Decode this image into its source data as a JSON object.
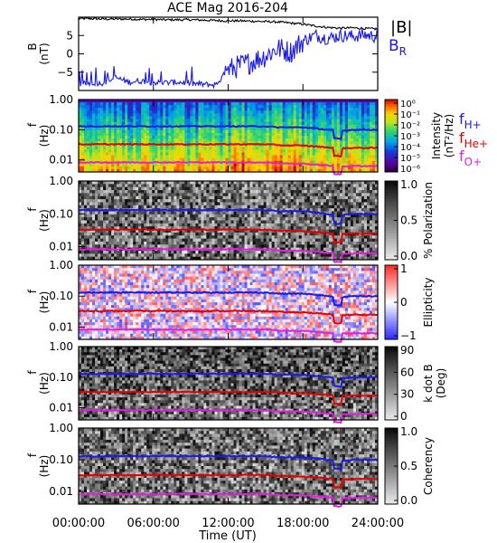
{
  "title": "ACE Mag 2016-204",
  "x_axis": {
    "label": "Time (UT)",
    "range_hours": [
      0,
      24
    ],
    "ticks": [
      {
        "hour": 0,
        "label": "00:00:00"
      },
      {
        "hour": 6,
        "label": "06:00:00"
      },
      {
        "hour": 12,
        "label": "12:00:00"
      },
      {
        "hour": 18,
        "label": "18:00:00"
      },
      {
        "hour": 24,
        "label": "24:00:00"
      }
    ]
  },
  "freq_axis": {
    "label_f": "f",
    "label_unit": "(Hz)",
    "log": true,
    "range": [
      0.004,
      1.0
    ],
    "ticks": [
      {
        "value": 1.0,
        "label": "1.00"
      },
      {
        "value": 0.1,
        "label": "0.10"
      },
      {
        "value": 0.01,
        "label": "0.01"
      }
    ]
  },
  "legend": {
    "b_total": {
      "text": "|B|",
      "color": "#000000"
    },
    "b_r": {
      "text": "B",
      "sub": "R",
      "color": "#1a1ae6"
    },
    "f_h": {
      "text": "f",
      "sub": "H+",
      "color": "#1a1ae6"
    },
    "f_he": {
      "text": "f",
      "sub": "He+",
      "color": "#e60000"
    },
    "f_o": {
      "text": "f",
      "sub": "O+",
      "color": "#e020e0"
    }
  },
  "panels": [
    {
      "id": "b-field",
      "kind": "line",
      "ylabel_top": "B",
      "ylabel_unit": "(nT)"
    },
    {
      "id": "intensity",
      "kind": "spectrogram",
      "colormap": "rainbow",
      "cbar_label": "Intensity",
      "cbar_unit": "(nT²/Hz)",
      "cbar_ticks": [
        "10⁰",
        "10⁻¹",
        "10⁻²",
        "10⁻³",
        "10⁻⁴",
        "10⁻⁵",
        "10⁻⁶"
      ]
    },
    {
      "id": "polarization",
      "kind": "spectrogram",
      "colormap": "gray_r",
      "cbar_label": "% Polarization",
      "cbar_unit": "",
      "cbar_ticks": [
        "1.0",
        "0.5",
        "0.0"
      ]
    },
    {
      "id": "ellipticity",
      "kind": "spectrogram",
      "colormap": "bwr",
      "cbar_label": "Ellipticity",
      "cbar_unit": "",
      "cbar_ticks": [
        "1",
        "0",
        "−1"
      ]
    },
    {
      "id": "kdotb",
      "kind": "spectrogram",
      "colormap": "gray_r",
      "cbar_label": "k dot B",
      "cbar_unit": "(Deg)",
      "cbar_ticks": [
        "90",
        "60",
        "30",
        "0"
      ]
    },
    {
      "id": "coherency",
      "kind": "spectrogram",
      "colormap": "gray_r",
      "cbar_label": "Coherency",
      "cbar_unit": "",
      "cbar_ticks": [
        "1.0",
        "0.5",
        "0.0"
      ]
    }
  ],
  "chart_data": {
    "type": "line",
    "title": "ACE Mag 2016-204",
    "xlabel": "Time (UT)",
    "ylabel": "B (nT)",
    "xlim": [
      0,
      24
    ],
    "ylim": [
      -10,
      10
    ],
    "y_ticks": [
      5,
      0,
      -5
    ],
    "x": [
      0,
      1,
      2,
      3,
      4,
      5,
      6,
      7,
      8,
      9,
      10,
      11,
      12,
      13,
      14,
      15,
      16,
      17,
      18,
      19,
      20,
      21,
      22,
      23,
      24
    ],
    "series": [
      {
        "name": "|B|",
        "color": "#000000",
        "values": [
          9.6,
          9.6,
          9.5,
          9.5,
          9.5,
          9.4,
          9.4,
          9.3,
          9.3,
          9.3,
          9.2,
          9.1,
          9.0,
          9.0,
          8.9,
          8.8,
          8.7,
          8.4,
          8.1,
          7.6,
          7.2,
          7.0,
          7.1,
          6.9,
          6.8
        ]
      },
      {
        "name": "B_R",
        "color": "#1a1ae6",
        "values": [
          -8.3,
          -8.0,
          -7.9,
          -6.5,
          -7.7,
          -7.4,
          -7.8,
          -7.9,
          -7.7,
          -8.1,
          -8.3,
          -8.5,
          -4.4,
          -3.2,
          -2.0,
          -0.5,
          1.5,
          0.5,
          3.5,
          5.1,
          4.2,
          5.0,
          4.8,
          5.2,
          4.6
        ]
      },
      {
        "name": "f_H+",
        "color": "#1a1ae6",
        "unit": "Hz",
        "values": [
          0.13,
          0.13,
          0.13,
          0.13,
          0.13,
          0.13,
          0.13,
          0.13,
          0.13,
          0.13,
          0.13,
          0.13,
          0.13,
          0.13,
          0.13,
          0.13,
          0.12,
          0.12,
          0.12,
          0.11,
          0.1,
          0.09,
          0.1,
          0.1,
          0.1
        ]
      },
      {
        "name": "f_He+",
        "color": "#e60000",
        "unit": "Hz",
        "values": [
          0.033,
          0.033,
          0.033,
          0.033,
          0.033,
          0.033,
          0.033,
          0.033,
          0.033,
          0.033,
          0.033,
          0.033,
          0.033,
          0.033,
          0.033,
          0.033,
          0.031,
          0.03,
          0.03,
          0.028,
          0.026,
          0.024,
          0.025,
          0.025,
          0.025
        ]
      },
      {
        "name": "f_O+",
        "color": "#e020e0",
        "unit": "Hz",
        "values": [
          0.0083,
          0.0083,
          0.0083,
          0.0083,
          0.0083,
          0.0083,
          0.0083,
          0.0083,
          0.0083,
          0.0083,
          0.0083,
          0.0083,
          0.0083,
          0.0083,
          0.0083,
          0.0083,
          0.0078,
          0.0076,
          0.0075,
          0.007,
          0.0065,
          0.0061,
          0.0063,
          0.0063,
          0.0063
        ]
      }
    ]
  }
}
